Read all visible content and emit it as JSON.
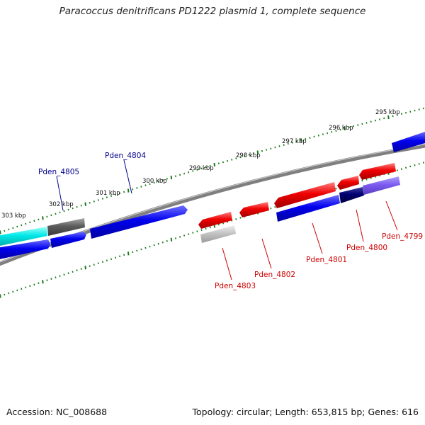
{
  "title": "Paracoccus denitrificans PD1222 plasmid 1, complete sequence",
  "footer": {
    "accession": "Accession: NC_008688",
    "stats": "Topology: circular; Length: 653,815 bp; Genes: 616"
  },
  "colors": {
    "background": "#ffffff",
    "tick": "#1a7a1a",
    "backbone": "#7f7f7f",
    "forward_gene": "#0000ee",
    "reverse_gene": "#ee0000",
    "label_forward": "#00008b",
    "label_reverse": "#cc0000"
  },
  "tick_labels": [
    "303 kbp",
    "302 kbp",
    "301 kbp",
    "300 kbp",
    "299 kbp",
    "298 kbp",
    "297 kbp",
    "296 kbp",
    "295 kbp"
  ],
  "gene_labels": {
    "forward": [
      "Pden_4805",
      "Pden_4804"
    ],
    "reverse": [
      "Pden_4803",
      "Pden_4802",
      "Pden_4801",
      "Pden_4800",
      "Pden_4799"
    ]
  }
}
